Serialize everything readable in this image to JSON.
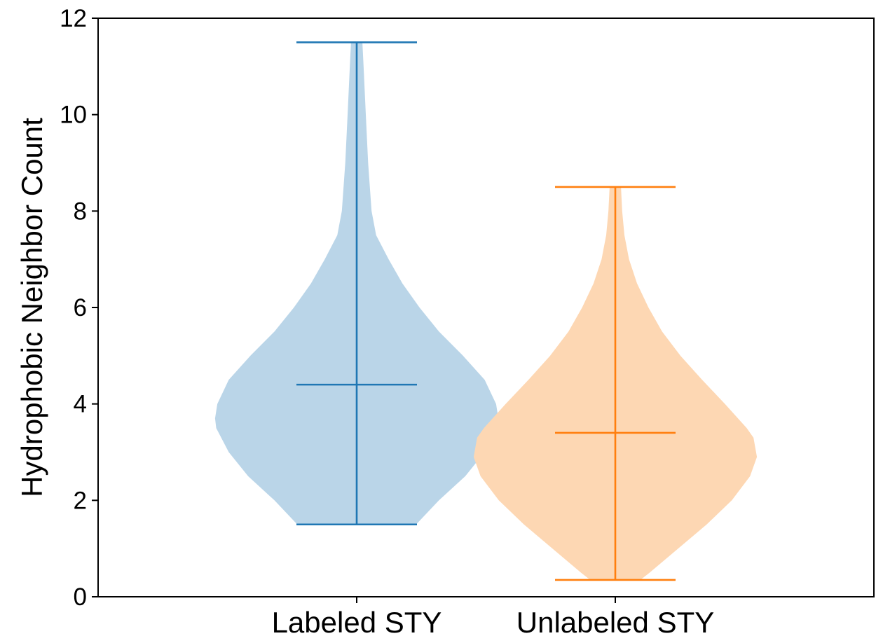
{
  "chart_data": {
    "type": "violin",
    "title": "",
    "xlabel": "",
    "ylabel": "Hydrophobic Neighbor Count",
    "ylim": [
      0,
      12
    ],
    "yticks": [
      "0",
      "2",
      "4",
      "6",
      "8",
      "10",
      "12"
    ],
    "categories": [
      "Labeled STY",
      "Unlabeled STY"
    ],
    "grid": false,
    "series": [
      {
        "category": "Labeled STY",
        "color": "#1f77b4",
        "fill": "#bad5e8",
        "min": 1.5,
        "max": 11.5,
        "mean": 4.4,
        "density_half_width": [
          [
            1.5,
            0.52
          ],
          [
            2.0,
            0.72
          ],
          [
            2.5,
            0.95
          ],
          [
            3.0,
            1.12
          ],
          [
            3.5,
            1.23
          ],
          [
            3.7,
            1.24
          ],
          [
            4.0,
            1.22
          ],
          [
            4.5,
            1.12
          ],
          [
            5.0,
            0.93
          ],
          [
            5.5,
            0.72
          ],
          [
            6.0,
            0.55
          ],
          [
            6.5,
            0.4
          ],
          [
            7.0,
            0.28
          ],
          [
            7.5,
            0.17
          ],
          [
            8.0,
            0.13
          ],
          [
            9.0,
            0.1
          ],
          [
            10.0,
            0.08
          ],
          [
            11.0,
            0.06
          ],
          [
            11.5,
            0.05
          ]
        ]
      },
      {
        "category": "Unlabeled STY",
        "color": "#ff7f0e",
        "fill": "#fdd7b3",
        "min": 0.35,
        "max": 8.5,
        "mean": 3.4,
        "density_half_width": [
          [
            0.35,
            0.22
          ],
          [
            0.5,
            0.3
          ],
          [
            1.0,
            0.55
          ],
          [
            1.5,
            0.8
          ],
          [
            2.0,
            1.02
          ],
          [
            2.5,
            1.18
          ],
          [
            2.9,
            1.24
          ],
          [
            3.3,
            1.21
          ],
          [
            3.5,
            1.15
          ],
          [
            4.0,
            0.96
          ],
          [
            4.5,
            0.76
          ],
          [
            5.0,
            0.57
          ],
          [
            5.5,
            0.41
          ],
          [
            6.0,
            0.29
          ],
          [
            6.5,
            0.19
          ],
          [
            7.0,
            0.12
          ],
          [
            7.5,
            0.08
          ],
          [
            8.0,
            0.06
          ],
          [
            8.5,
            0.05
          ]
        ]
      }
    ]
  }
}
